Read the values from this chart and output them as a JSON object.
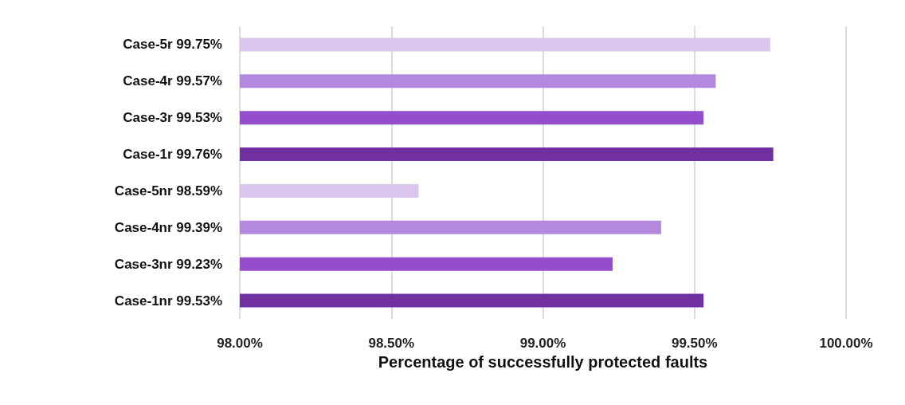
{
  "chart_data": {
    "type": "bar",
    "orientation": "horizontal",
    "xlabel": "Percentage of successfully protected faults",
    "categories": [
      "Case-5r 99.75%",
      "Case-4r 99.57%",
      "Case-3r 99.53%",
      "Case-1r 99.76%",
      "Case-5nr 98.59%",
      "Case-4nr 99.39%",
      "Case-3nr 99.23%",
      "Case-1nr 99.53%"
    ],
    "values": [
      99.75,
      99.57,
      99.53,
      99.76,
      98.59,
      99.39,
      99.23,
      99.53
    ],
    "colors": [
      "#dcc6ee",
      "#b388dd",
      "#944ecb",
      "#70309f",
      "#dcc6ee",
      "#b388dd",
      "#944ecb",
      "#70309f"
    ],
    "xlim": [
      98,
      100
    ],
    "xticks": [
      {
        "value": 98,
        "label": "98.00%"
      },
      {
        "value": 98.5,
        "label": "98.50%"
      },
      {
        "value": 99,
        "label": "99.00%"
      },
      {
        "value": 99.5,
        "label": "99.50%"
      },
      {
        "value": 100,
        "label": "100.00%"
      }
    ],
    "grid": "x"
  }
}
